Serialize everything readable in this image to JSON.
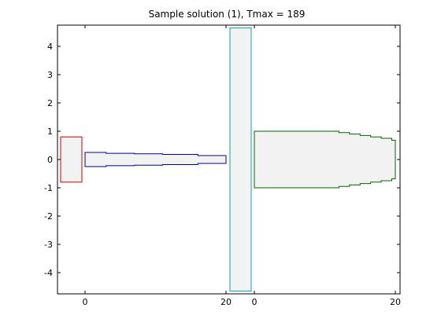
{
  "chart_data": {
    "type": "other",
    "title": "Sample solution (1), Tmax = 189",
    "xlabel": "",
    "ylabel": "",
    "ylim": [
      -4.75,
      4.75
    ],
    "y_ticks": [
      4,
      3,
      2,
      1,
      0,
      -1,
      -2,
      -3,
      -4
    ],
    "x_tick_labels": [
      {
        "label": "0",
        "segment": "blue"
      },
      {
        "label": "20",
        "segment": "blue-end"
      },
      {
        "label": "0",
        "segment": "green"
      },
      {
        "label": "20",
        "segment": "green-end"
      }
    ],
    "shapes": [
      {
        "name": "red-rectangle",
        "kind": "rect",
        "color": "#cc0000",
        "fill": "#f2f2f2",
        "x_range": [
          -3.5,
          -0.3
        ],
        "y_range": [
          -0.8,
          0.8
        ]
      },
      {
        "name": "blue-tapered-segment",
        "kind": "staircase",
        "color": "#000099",
        "fill": "#f2f2f2",
        "x_start": 0,
        "x_end": 20,
        "steps": [
          {
            "x": 0,
            "half_height": 0.25
          },
          {
            "x": 3,
            "half_height": 0.22
          },
          {
            "x": 7,
            "half_height": 0.2
          },
          {
            "x": 11,
            "half_height": 0.18
          },
          {
            "x": 16,
            "half_height": 0.14
          },
          {
            "x": 20,
            "half_height": 0.14
          }
        ],
        "center_y": 0
      },
      {
        "name": "cyan-tall-bar",
        "kind": "rect",
        "color": "#00aaaa",
        "fill": "#f2f2f2",
        "x_range": [
          0.3,
          3.3
        ],
        "y_range": [
          -4.65,
          4.65
        ]
      },
      {
        "name": "green-tapered-segment",
        "kind": "staircase",
        "color": "#006600",
        "fill": "#f2f2f2",
        "x_start": 0,
        "x_end": 20,
        "steps": [
          {
            "x": 0,
            "half_height": 1.0
          },
          {
            "x": 12,
            "half_height": 0.95
          },
          {
            "x": 13.5,
            "half_height": 0.9
          },
          {
            "x": 15,
            "half_height": 0.85
          },
          {
            "x": 16.5,
            "half_height": 0.8
          },
          {
            "x": 18,
            "half_height": 0.75
          },
          {
            "x": 19.5,
            "half_height": 0.68
          },
          {
            "x": 20,
            "half_height": 0.68
          }
        ],
        "center_y": 0
      }
    ]
  }
}
